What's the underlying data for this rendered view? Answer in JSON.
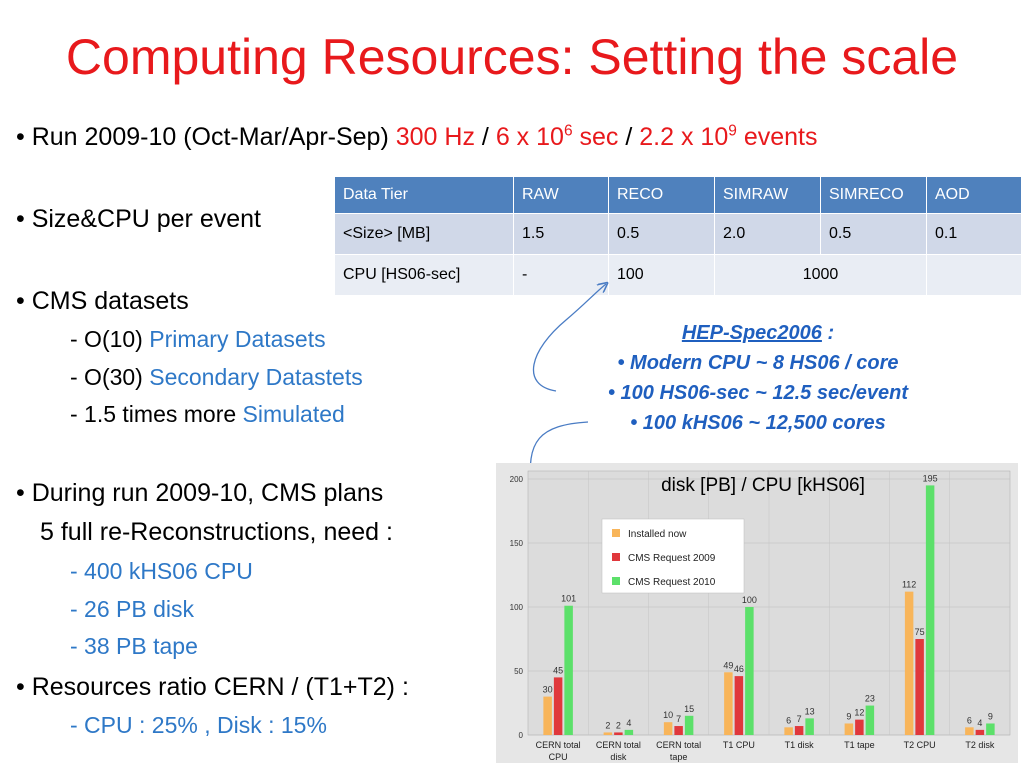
{
  "title": "Computing Resources: Setting the scale",
  "bullets": {
    "run": {
      "text": "Run 2009-10 (Oct-Mar/Apr-Sep)",
      "rate": "300 Hz",
      "sep1": "/",
      "time": "6 x 10",
      "time_exp": "6",
      "time_unit": "sec",
      "sep2": "/",
      "events": "2.2 x 10",
      "events_exp": "9",
      "events_unit": "events"
    },
    "size_cpu": "Size&CPU per event",
    "datasets": {
      "title": "CMS datasets",
      "items": [
        {
          "prefix": "- O(10)",
          "label": "Primary Datasets"
        },
        {
          "prefix": "- O(30)",
          "label": "Secondary Datastets"
        },
        {
          "prefix": "- 1.5 times more",
          "label": "Simulated"
        }
      ]
    },
    "plans": {
      "line1": "During run 2009-10, CMS plans",
      "line2": "5 full re-Reconstructions, need :",
      "items": [
        "- 400 kHS06 CPU",
        "- 26 PB disk",
        "- 38 PB tape"
      ]
    },
    "ratio": {
      "title": "Resources ratio CERN / (T1+T2) :",
      "value": "- CPU : 25% , Disk : 15%"
    }
  },
  "table": {
    "headers": [
      "Data Tier",
      "RAW",
      "RECO",
      "SIMRAW",
      "SIMRECO",
      "AOD"
    ],
    "size_row": [
      "<Size> [MB]",
      "1.5",
      "0.5",
      "2.0",
      "0.5",
      "0.1"
    ],
    "cpu_row": {
      "label": "CPU [HS06-sec]",
      "raw": "-",
      "reco": "100",
      "sim": "1000",
      "aod": ""
    }
  },
  "hep_spec": {
    "title": "HEP-Spec2006",
    "colon": ":",
    "lines": [
      "• Modern CPU ~ 8 HS06 / core",
      "• 100 HS06-sec ~ 12.5 sec/event",
      "• 100 kHS06 ~ 12,500 cores"
    ]
  },
  "colors": {
    "title_red": "#e8191c",
    "accent_blue": "#2e78c7",
    "table_header": "#4f81bd",
    "installed": "#f8b55a",
    "req2009": "#e0383c",
    "req2010": "#5ce06a"
  },
  "chart_data": {
    "type": "bar",
    "title": "disk [PB] / CPU [kHS06]",
    "categories": [
      "CERN total CPU",
      "CERN total disk",
      "CERN total tape",
      "T1 CPU",
      "T1 disk",
      "T1 tape",
      "T2 CPU",
      "T2 disk"
    ],
    "series": [
      {
        "name": "Installed now",
        "color": "#f8b55a",
        "values": [
          30,
          2,
          10,
          49,
          6,
          9,
          112,
          6
        ]
      },
      {
        "name": "CMS Request 2009",
        "color": "#e0383c",
        "values": [
          45,
          2,
          7,
          46,
          7,
          12,
          75,
          4
        ]
      },
      {
        "name": "CMS Request 2010",
        "color": "#5ce06a",
        "values": [
          101,
          4,
          15,
          100,
          13,
          23,
          195,
          9
        ]
      }
    ],
    "ylim": [
      0,
      200
    ],
    "yticks": [
      0,
      50,
      100,
      150,
      200
    ],
    "grid": true,
    "legend": "top-left"
  }
}
